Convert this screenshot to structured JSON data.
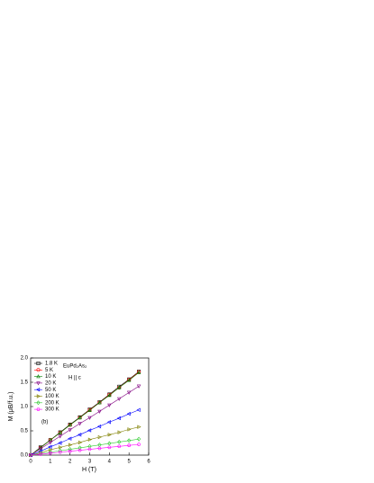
{
  "chart_data": {
    "type": "line",
    "xlabel": "H (T)",
    "ylabel": "M (μB/f.u.)",
    "annotations": [
      "EuPd₂As₂",
      "H || c",
      "(b)"
    ],
    "x": [
      0,
      0.5,
      1,
      1.5,
      2,
      2.5,
      3,
      3.5,
      4,
      4.5,
      5,
      5.5
    ],
    "series": [
      {
        "name": "1.8 K",
        "color": "#000000",
        "marker": "square",
        "values": [
          0,
          0.16,
          0.31,
          0.47,
          0.63,
          0.78,
          0.94,
          1.09,
          1.25,
          1.41,
          1.56,
          1.72
        ]
      },
      {
        "name": "5 K",
        "color": "#ff0000",
        "marker": "circle",
        "values": [
          0,
          0.15,
          0.31,
          0.46,
          0.62,
          0.77,
          0.93,
          1.08,
          1.24,
          1.39,
          1.55,
          1.71
        ]
      },
      {
        "name": "10 K",
        "color": "#008000",
        "marker": "triangle-up",
        "values": [
          0,
          0.15,
          0.31,
          0.46,
          0.62,
          0.77,
          0.92,
          1.08,
          1.23,
          1.39,
          1.54,
          1.7
        ]
      },
      {
        "name": "20 K",
        "color": "#800080",
        "marker": "triangle-down",
        "values": [
          0,
          0.13,
          0.26,
          0.39,
          0.52,
          0.65,
          0.77,
          0.9,
          1.03,
          1.16,
          1.29,
          1.42
        ]
      },
      {
        "name": "50 K",
        "color": "#0000ff",
        "marker": "triangle-left",
        "values": [
          0,
          0.08,
          0.17,
          0.25,
          0.34,
          0.42,
          0.51,
          0.59,
          0.68,
          0.76,
          0.85,
          0.93
        ]
      },
      {
        "name": "100 K",
        "color": "#808000",
        "marker": "triangle-right",
        "values": [
          0,
          0.05,
          0.11,
          0.16,
          0.21,
          0.26,
          0.32,
          0.37,
          0.42,
          0.47,
          0.53,
          0.58
        ]
      },
      {
        "name": "200 K",
        "color": "#33cc33",
        "marker": "diamond",
        "values": [
          0,
          0.03,
          0.06,
          0.09,
          0.12,
          0.15,
          0.18,
          0.21,
          0.24,
          0.27,
          0.3,
          0.33
        ]
      },
      {
        "name": "300 K",
        "color": "#ff00ff",
        "marker": "hexagon",
        "values": [
          0,
          0.02,
          0.04,
          0.06,
          0.08,
          0.1,
          0.12,
          0.14,
          0.16,
          0.18,
          0.2,
          0.22
        ]
      }
    ],
    "xlim": [
      0,
      6
    ],
    "xticks": [
      0,
      1,
      2,
      3,
      4,
      5,
      6
    ],
    "ylim": [
      0,
      2
    ],
    "yticks": [
      {
        "value": 0,
        "label": "0.0"
      },
      {
        "value": 0.5,
        "label": "0.5"
      },
      {
        "value": 1,
        "label": "1.0"
      },
      {
        "value": 1.5,
        "label": "1.5"
      },
      {
        "value": 2,
        "label": "2.0"
      }
    ],
    "grid": false,
    "legend": "upper left"
  }
}
